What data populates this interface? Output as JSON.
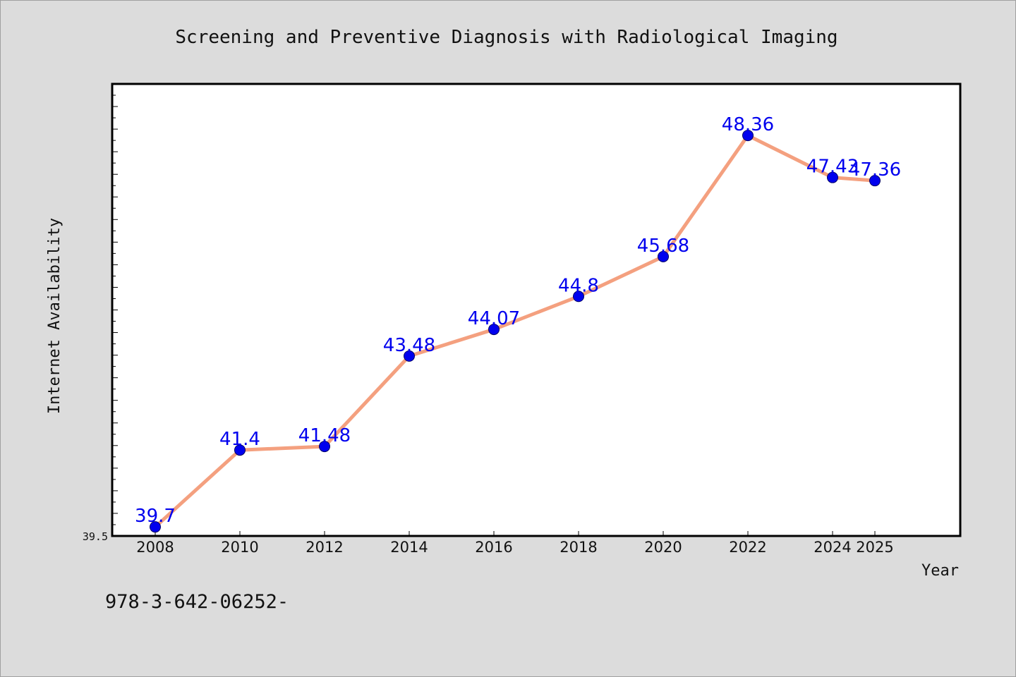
{
  "chart_data": {
    "type": "line",
    "title": "Screening and Preventive Diagnosis with Radiological Imaging",
    "xlabel": "Year",
    "ylabel": "Internet Availability",
    "x": [
      2008,
      2010,
      2012,
      2014,
      2016,
      2018,
      2020,
      2022,
      2024,
      2025
    ],
    "x_ticks": [
      "2008",
      "2010",
      "2012",
      "2014",
      "2016",
      "2018",
      "2020",
      "2022",
      "2024",
      "2025"
    ],
    "series": [
      {
        "values": [
          39.7,
          41.4,
          41.48,
          43.48,
          44.07,
          44.8,
          45.68,
          48.36,
          47.43,
          47.36
        ],
        "labels": [
          "39.7",
          "41.4",
          "41.48",
          "43.48",
          "44.07",
          "44.8",
          "45.68",
          "48.36",
          "47.43",
          "47.36"
        ]
      }
    ],
    "ylim": [
      39.5,
      49.5
    ],
    "y_min_label": "39.5",
    "grid": false,
    "legend": "none"
  },
  "footer": {
    "text": "978-3-642-06252-"
  },
  "colors": {
    "background": "#dcdcdc",
    "plot_background": "#ffffff",
    "line": "#f4a07f",
    "marker": "#0000ee",
    "data_label": "#0000ee",
    "axis": "#000000"
  }
}
